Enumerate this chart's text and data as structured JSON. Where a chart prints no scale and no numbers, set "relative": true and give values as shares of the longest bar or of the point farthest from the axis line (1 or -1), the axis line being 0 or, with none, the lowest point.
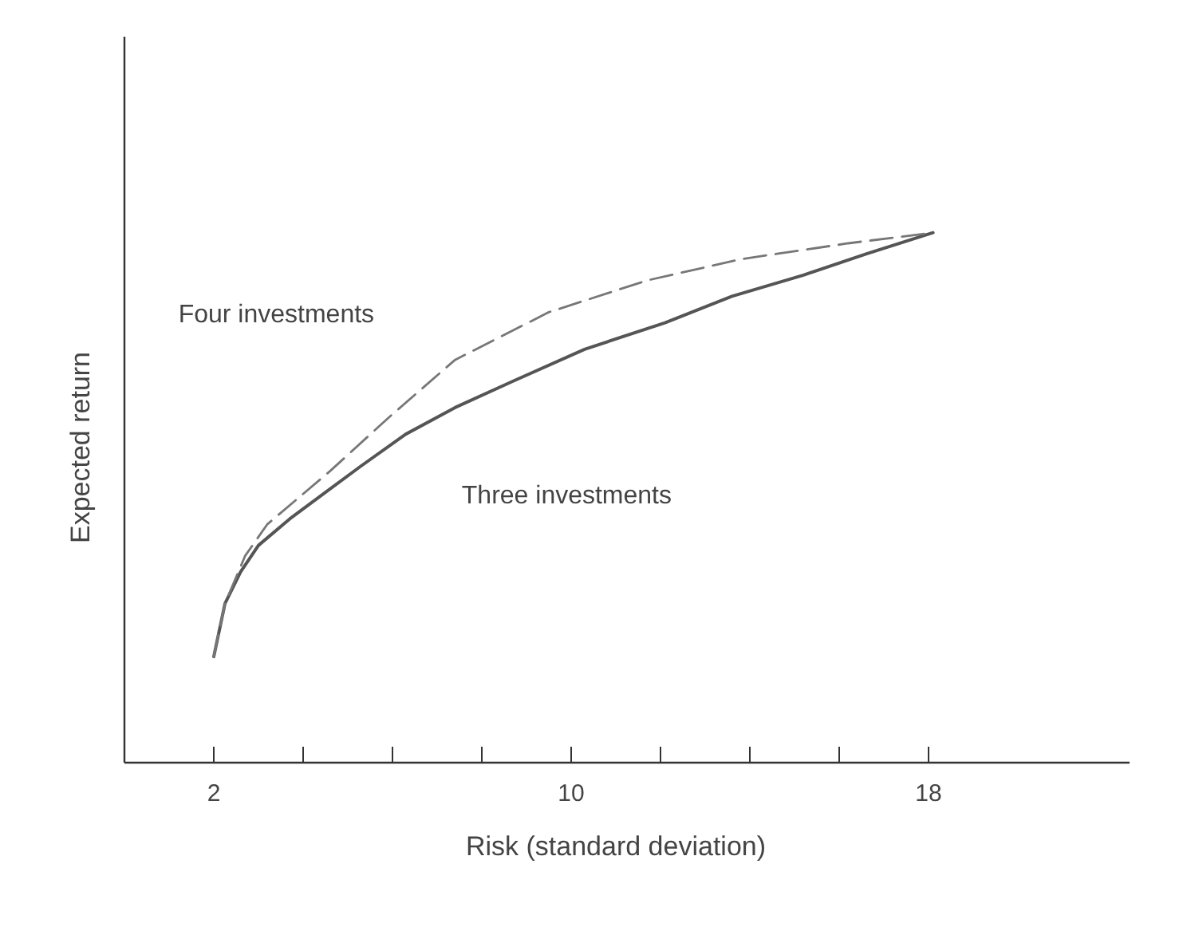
{
  "chart_data": {
    "type": "line",
    "relative": true,
    "xlabel": "Risk (standard deviation)",
    "ylabel": "Expected return",
    "xlim": [
      0,
      22.5
    ],
    "xticks": [
      2,
      {
        "value": 4,
        "label": null
      },
      {
        "value": 6,
        "label": null
      },
      {
        "value": 8,
        "label": null
      },
      10,
      {
        "value": 12,
        "label": null
      },
      {
        "value": 14,
        "label": null
      },
      {
        "value": 16,
        "label": null
      },
      18
    ],
    "grid": false,
    "legend": false,
    "marker": "none",
    "series": [
      {
        "name": "Three investments",
        "color": "#555555",
        "line_style": "solid",
        "x": [
          2,
          2.25,
          2.6,
          3,
          3.7,
          4.5,
          5.3,
          6.3,
          7.4,
          8.7,
          10.3,
          12.1,
          13.6,
          15.2,
          16.6,
          18.1
        ],
        "values": [
          0.2,
          0.3,
          0.36,
          0.41,
          0.46,
          0.51,
          0.56,
          0.62,
          0.67,
          0.72,
          0.78,
          0.83,
          0.88,
          0.92,
          0.96,
          1
        ]
      },
      {
        "name": "Four investments",
        "color": "#777777",
        "line_style": "dashed",
        "x": [
          2,
          2.25,
          2.7,
          3.2,
          3.9,
          4.6,
          5.9,
          7.4,
          9.5,
          11.7,
          13.8,
          16.2,
          18.1
        ],
        "values": [
          0.2,
          0.3,
          0.39,
          0.45,
          0.5,
          0.55,
          0.65,
          0.76,
          0.85,
          0.91,
          0.95,
          0.98,
          1
        ]
      }
    ]
  }
}
